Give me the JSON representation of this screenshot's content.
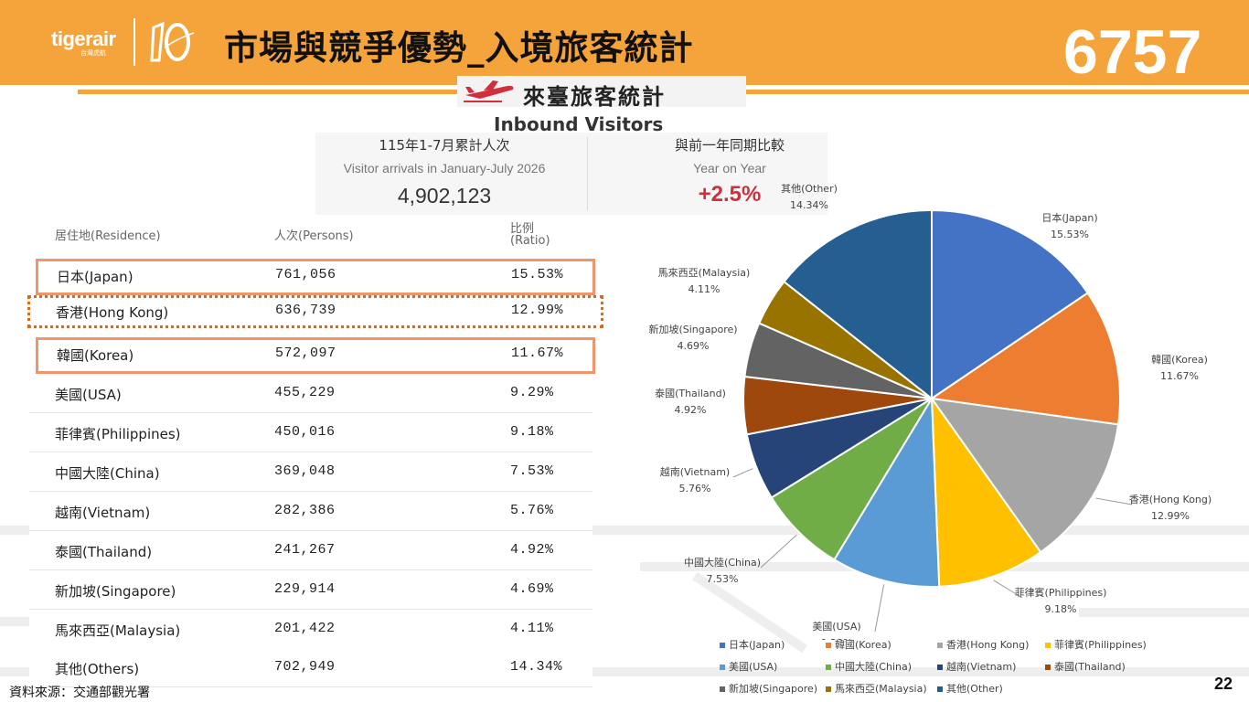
{
  "header": {
    "logo_text": "tigerair",
    "logo_subtext": "台灣虎航",
    "title": "市場與競爭優勢_入境旅客統計",
    "stock_code": "6757",
    "brand_color": "#f4a43a"
  },
  "banner": {
    "title": "來臺旅客統計",
    "subtitle": "Inbound Visitors"
  },
  "summary": {
    "left_label": "115年1-7月累計人次",
    "left_sub": "Visitor arrivals in January-July 2026",
    "left_value": "4,902,123",
    "right_label": "與前一年同期比較",
    "right_sub": "Year on Year",
    "right_value": "+2.5%",
    "accent_color": "#d22f3c"
  },
  "table": {
    "headers": [
      "居住地(Residence)",
      "人次(Persons)",
      "比例",
      "(Ratio)"
    ],
    "rows": [
      {
        "residence": "日本(Japan)",
        "persons": "761,056",
        "ratio": "15.53%",
        "highlight": "solid"
      },
      {
        "residence": "香港(Hong Kong)",
        "persons": "636,739",
        "ratio": "12.99%",
        "highlight": "dotted"
      },
      {
        "residence": "韓國(Korea)",
        "persons": "572,097",
        "ratio": "11.67%",
        "highlight": "solid"
      },
      {
        "residence": "美國(USA)",
        "persons": "455,229",
        "ratio": "9.29%",
        "highlight": "none"
      },
      {
        "residence": "菲律賓(Philippines)",
        "persons": "450,016",
        "ratio": "9.18%",
        "highlight": "none"
      },
      {
        "residence": "中國大陸(China)",
        "persons": "369,048",
        "ratio": "7.53%",
        "highlight": "none"
      },
      {
        "residence": "越南(Vietnam)",
        "persons": "282,386",
        "ratio": "5.76%",
        "highlight": "none"
      },
      {
        "residence": "泰國(Thailand)",
        "persons": "241,267",
        "ratio": "4.92%",
        "highlight": "none"
      },
      {
        "residence": "新加坡(Singapore)",
        "persons": "229,914",
        "ratio": "4.69%",
        "highlight": "none"
      },
      {
        "residence": "馬來西亞(Malaysia)",
        "persons": "201,422",
        "ratio": "4.11%",
        "highlight": "none"
      },
      {
        "residence": "其他(Others)",
        "persons": "702,949",
        "ratio": "14.34%",
        "highlight": "none"
      }
    ]
  },
  "chart_data": {
    "type": "pie",
    "slices": [
      {
        "name": "日本(Japan)",
        "value": 15.53,
        "label": "15.53%",
        "color": "#4472c4"
      },
      {
        "name": "韓國(Korea)",
        "value": 11.67,
        "label": "11.67%",
        "color": "#ed7d31"
      },
      {
        "name": "香港(Hong Kong)",
        "value": 12.99,
        "label": "12.99%",
        "color": "#a5a5a5"
      },
      {
        "name": "菲律賓(Philippines)",
        "value": 9.18,
        "label": "9.18%",
        "color": "#ffc000"
      },
      {
        "name": "美國(USA)",
        "value": 9.29,
        "label": "9.29%",
        "color": "#5b9bd5"
      },
      {
        "name": "中國大陸(China)",
        "value": 7.53,
        "label": "7.53%",
        "color": "#70ad47"
      },
      {
        "name": "越南(Vietnam)",
        "value": 5.76,
        "label": "5.76%",
        "color": "#264478"
      },
      {
        "name": "泰國(Thailand)",
        "value": 4.92,
        "label": "4.92%",
        "color": "#9e480e"
      },
      {
        "name": "新加坡(Singapore)",
        "value": 4.69,
        "label": "4.69%",
        "color": "#636363"
      },
      {
        "name": "馬來西亞(Malaysia)",
        "value": 4.11,
        "label": "4.11%",
        "color": "#997300"
      },
      {
        "name": "其他(Other)",
        "value": 14.34,
        "label": "14.34%",
        "color": "#255e91"
      }
    ],
    "legend": [
      {
        "name": "日本(Japan)",
        "color": "#4472c4"
      },
      {
        "name": "韓國(Korea)",
        "color": "#ed7d31"
      },
      {
        "name": "香港(Hong Kong)",
        "color": "#a5a5a5"
      },
      {
        "name": "菲律賓(Philippines)",
        "color": "#ffc000"
      },
      {
        "name": "美國(USA)",
        "color": "#5b9bd5"
      },
      {
        "name": "中國大陸(China)",
        "color": "#70ad47"
      },
      {
        "name": "越南(Vietnam)",
        "color": "#264478"
      },
      {
        "name": "泰國(Thailand)",
        "color": "#9e480e"
      },
      {
        "name": "新加坡(Singapore)",
        "color": "#636363"
      },
      {
        "name": "馬來西亞(Malaysia)",
        "color": "#997300"
      },
      {
        "name": "其他(Other)",
        "color": "#255e91"
      }
    ],
    "legend_position": "bottom"
  },
  "footer": {
    "source": "資料來源：交通部觀光署",
    "page_number": "22"
  }
}
